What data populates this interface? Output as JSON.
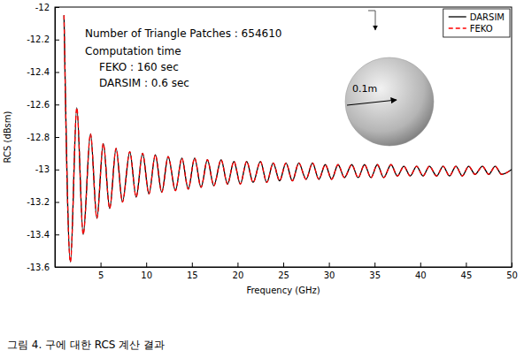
{
  "chart_data": {
    "type": "line",
    "xlabel": "Frequency (GHz)",
    "ylabel": "RCS (dBsm)",
    "caption": "그림 4. 구에 대한 RCS 계산 결과",
    "annotations": [
      "Number of Triangle Patches : 654610",
      "Computation time",
      "FEKO : 160 sec",
      "DARSIM : 0.6 sec",
      "0.1m"
    ],
    "x": [
      1.0,
      1.7,
      2.4,
      3.1,
      3.9,
      4.6,
      5.3,
      6.0,
      6.7,
      7.4,
      8.2,
      8.9,
      9.6,
      10.3,
      11.0,
      11.7,
      12.4,
      13.2,
      13.9,
      14.6,
      15.3,
      16.0,
      16.7,
      17.4,
      18.2,
      18.9,
      19.6,
      20.3,
      21.0,
      21.7,
      22.5,
      23.2,
      23.9,
      24.6,
      25.3,
      26.0,
      26.7,
      27.5,
      28.2,
      28.9,
      29.6,
      30.3,
      31.0,
      31.7,
      32.5,
      33.2,
      33.9,
      34.6,
      35.3,
      36.0,
      36.8,
      37.5,
      38.2,
      38.9,
      39.6,
      40.3,
      41.0,
      41.8,
      42.5,
      43.2,
      43.9,
      44.6,
      45.3,
      46.0,
      46.8,
      47.5,
      48.2,
      48.9,
      50.0
    ],
    "series": [
      {
        "name": "DARSIM",
        "color": "#000000",
        "line_style": "solid",
        "values": [
          -12.05,
          -13.57,
          -12.62,
          -13.4,
          -12.78,
          -13.3,
          -12.84,
          -13.24,
          -12.87,
          -13.2,
          -12.89,
          -13.17,
          -12.9,
          -13.15,
          -12.91,
          -13.14,
          -12.92,
          -13.13,
          -12.93,
          -13.12,
          -12.93,
          -13.11,
          -12.94,
          -13.1,
          -12.94,
          -13.09,
          -12.95,
          -13.09,
          -12.95,
          -13.08,
          -12.95,
          -13.08,
          -12.96,
          -13.07,
          -12.96,
          -13.07,
          -12.96,
          -13.06,
          -12.96,
          -13.06,
          -12.97,
          -13.06,
          -12.97,
          -13.05,
          -12.97,
          -13.05,
          -12.97,
          -13.05,
          -12.97,
          -13.05,
          -12.97,
          -13.04,
          -12.98,
          -13.04,
          -12.98,
          -13.04,
          -12.98,
          -13.04,
          -12.98,
          -13.04,
          -12.98,
          -13.04,
          -12.98,
          -13.03,
          -12.98,
          -13.03,
          -12.98,
          -13.03,
          -13.0
        ]
      },
      {
        "name": "FEKO",
        "color": "#ff0000",
        "line_style": "dashed",
        "values": [
          -12.05,
          -13.57,
          -12.62,
          -13.4,
          -12.78,
          -13.3,
          -12.84,
          -13.24,
          -12.87,
          -13.2,
          -12.89,
          -13.17,
          -12.9,
          -13.15,
          -12.91,
          -13.14,
          -12.92,
          -13.13,
          -12.93,
          -13.12,
          -12.93,
          -13.11,
          -12.94,
          -13.1,
          -12.94,
          -13.09,
          -12.95,
          -13.09,
          -12.95,
          -13.08,
          -12.95,
          -13.08,
          -12.96,
          -13.07,
          -12.96,
          -13.07,
          -12.96,
          -13.06,
          -12.96,
          -13.06,
          -12.97,
          -13.06,
          -12.97,
          -13.05,
          -12.97,
          -13.05,
          -12.97,
          -13.05,
          -12.97,
          -13.05,
          -12.97,
          -13.04,
          -12.98,
          -13.04,
          -12.98,
          -13.04,
          -12.98,
          -13.04,
          -12.98,
          -13.04,
          -12.98,
          -13.04,
          -12.98,
          -13.03,
          -12.98,
          -13.03,
          -12.98,
          -13.03,
          -13.0
        ]
      }
    ],
    "xlim": [
      0,
      50
    ],
    "ylim": [
      -13.6,
      -12
    ],
    "xticks": [
      5,
      10,
      15,
      20,
      25,
      30,
      35,
      40,
      45,
      50
    ],
    "yticks": [
      -12,
      -12.2,
      -12.4,
      -12.6,
      -12.8,
      -13,
      -13.2,
      -13.4,
      -13.6
    ],
    "grid": false,
    "legend": "top-right"
  }
}
